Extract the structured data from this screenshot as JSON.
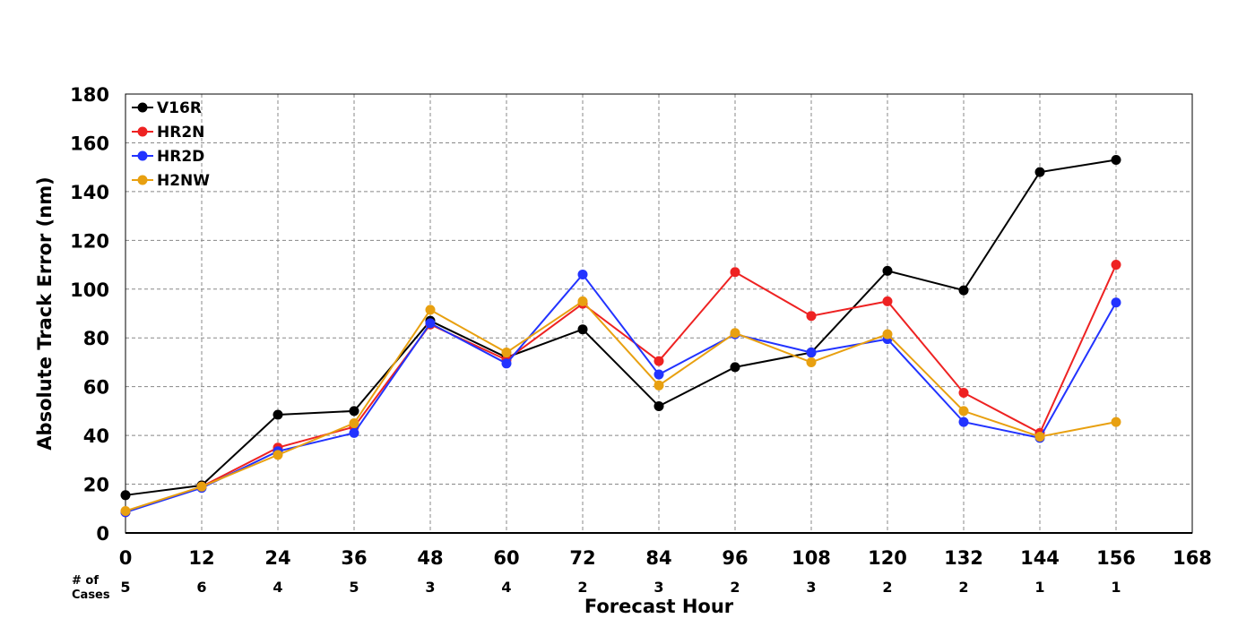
{
  "chart_data": {
    "type": "line",
    "xlabel": "Forecast Hour",
    "ylabel": "Absolute Track Error (nm)",
    "x": [
      0,
      12,
      24,
      36,
      48,
      60,
      72,
      84,
      96,
      108,
      120,
      132,
      144,
      156
    ],
    "xticks": [
      0,
      12,
      24,
      36,
      48,
      60,
      72,
      84,
      96,
      108,
      120,
      132,
      144,
      156,
      168
    ],
    "xlim": [
      0,
      168
    ],
    "ylim": [
      0,
      180
    ],
    "yticks": [
      0,
      20,
      40,
      60,
      80,
      100,
      120,
      140,
      160,
      180
    ],
    "grid": true,
    "legend_position": "top-left",
    "cases_label": [
      "# of",
      "Cases"
    ],
    "cases": [
      5,
      6,
      4,
      5,
      3,
      4,
      2,
      3,
      2,
      3,
      2,
      2,
      1,
      1
    ],
    "series": [
      {
        "name": "V16R",
        "color": "#000000",
        "values": [
          15.5,
          19.5,
          48.5,
          50,
          87,
          72,
          83.5,
          52,
          68,
          74,
          107.5,
          99.5,
          148,
          153
        ]
      },
      {
        "name": "HR2N",
        "color": "#ee2222",
        "values": [
          8.5,
          19,
          35,
          43.5,
          85.5,
          71,
          94,
          70.5,
          107,
          89,
          95,
          57.5,
          41,
          110
        ]
      },
      {
        "name": "HR2D",
        "color": "#2233ff",
        "values": [
          8.5,
          18.5,
          33.5,
          41,
          86,
          69.5,
          106,
          65,
          81.5,
          74,
          79.5,
          45.5,
          39,
          94.5
        ]
      },
      {
        "name": "H2NW",
        "color": "#e8a010",
        "values": [
          9,
          19,
          32,
          45,
          91.5,
          74,
          95,
          60.5,
          82,
          70,
          81.5,
          50,
          39.5,
          45.5
        ]
      }
    ]
  }
}
